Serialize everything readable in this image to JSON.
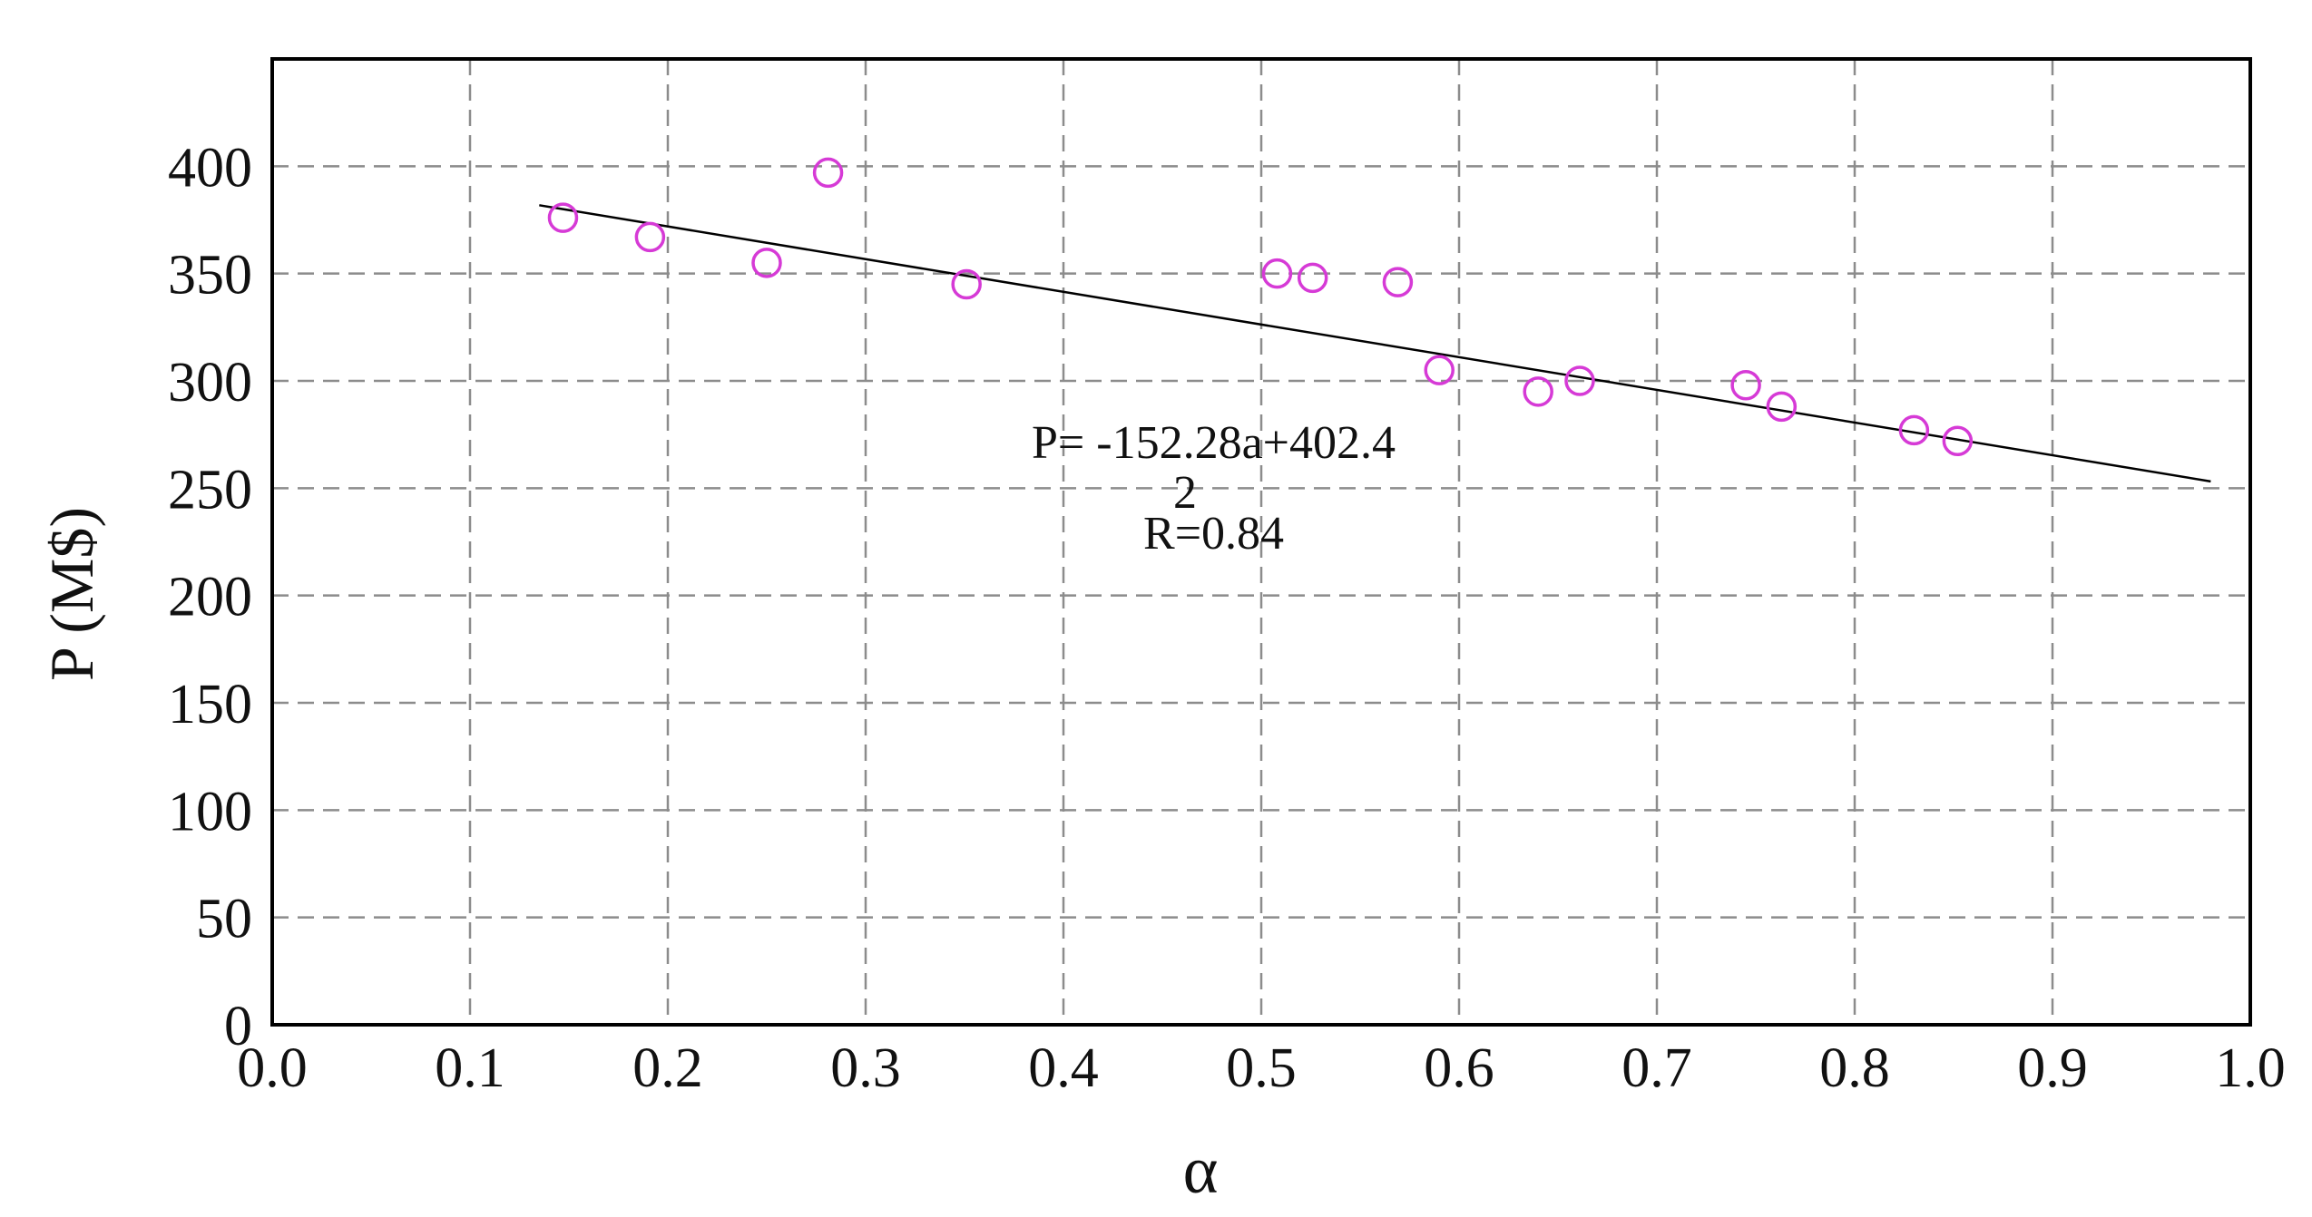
{
  "chart_data": {
    "type": "scatter",
    "title": "",
    "xlabel": "α",
    "ylabel": "P (M$)",
    "xlim": [
      0.0,
      1.0
    ],
    "ylim": [
      0,
      450
    ],
    "x_ticks": [
      "0.0",
      "0.1",
      "0.2",
      "0.3",
      "0.4",
      "0.5",
      "0.6",
      "0.7",
      "0.8",
      "0.9",
      "1.0"
    ],
    "y_ticks": [
      "0",
      "50",
      "100",
      "150",
      "200",
      "250",
      "300",
      "350",
      "400"
    ],
    "grid": true,
    "marker": "open-circle",
    "marker_color": "#d63ad6",
    "points": [
      {
        "x": 0.147,
        "y": 376
      },
      {
        "x": 0.191,
        "y": 367
      },
      {
        "x": 0.25,
        "y": 355
      },
      {
        "x": 0.281,
        "y": 397
      },
      {
        "x": 0.351,
        "y": 345
      },
      {
        "x": 0.508,
        "y": 350
      },
      {
        "x": 0.526,
        "y": 348
      },
      {
        "x": 0.569,
        "y": 346
      },
      {
        "x": 0.59,
        "y": 305
      },
      {
        "x": 0.64,
        "y": 295
      },
      {
        "x": 0.661,
        "y": 300
      },
      {
        "x": 0.745,
        "y": 298
      },
      {
        "x": 0.763,
        "y": 288
      },
      {
        "x": 0.83,
        "y": 277
      },
      {
        "x": 0.852,
        "y": 272
      }
    ],
    "trendline": {
      "x_start": 0.135,
      "x_end": 0.98,
      "slope": -152.28,
      "intercept": 402.4,
      "color": "#000000"
    },
    "annotations": {
      "equation": "P= -152.28a+402.4",
      "r2_base": "R",
      "r2_sup": "2",
      "r2_value": "=0.84"
    }
  }
}
